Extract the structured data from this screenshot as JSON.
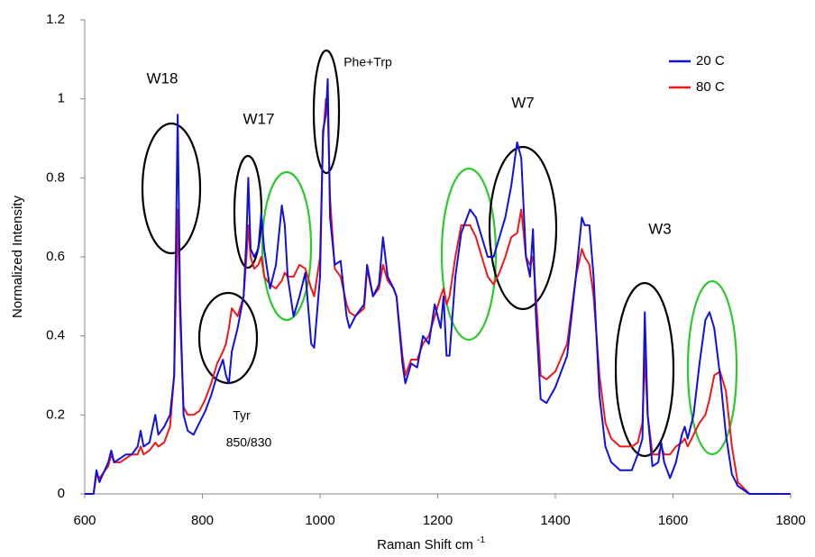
{
  "chart_data": {
    "type": "line",
    "x_label": "Raman Shift cm",
    "x_label_superscript": "-1",
    "y_label": "Normalized Intensity",
    "xlim": [
      600,
      1800
    ],
    "xticks": [
      600,
      800,
      1000,
      1200,
      1400,
      1600,
      1800
    ],
    "ylim": [
      0,
      1.2
    ],
    "yticks": [
      0,
      0.2,
      0.4,
      0.6,
      0.8,
      1,
      1.2
    ],
    "grid": false,
    "legend": "top-right",
    "annotations": [
      "W18",
      "W17",
      "Phe+Trp",
      "W7",
      "W3",
      "Tyr",
      "850/830"
    ],
    "x": [
      600,
      615,
      620,
      625,
      640,
      645,
      650,
      660,
      670,
      680,
      690,
      695,
      700,
      710,
      720,
      725,
      735,
      745,
      752,
      758,
      762,
      768,
      775,
      785,
      795,
      805,
      815,
      825,
      835,
      840,
      845,
      850,
      860,
      870,
      875,
      878,
      882,
      888,
      895,
      900,
      905,
      915,
      925,
      935,
      940,
      945,
      955,
      965,
      975,
      985,
      990,
      1000,
      1005,
      1010,
      1013,
      1017,
      1025,
      1035,
      1045,
      1050,
      1060,
      1075,
      1080,
      1090,
      1100,
      1107,
      1115,
      1125,
      1130,
      1140,
      1145,
      1155,
      1165,
      1175,
      1185,
      1195,
      1205,
      1210,
      1215,
      1220,
      1230,
      1240,
      1255,
      1265,
      1275,
      1285,
      1295,
      1305,
      1315,
      1325,
      1335,
      1342,
      1350,
      1357,
      1362,
      1367,
      1375,
      1385,
      1400,
      1420,
      1435,
      1445,
      1450,
      1458,
      1465,
      1475,
      1485,
      1495,
      1510,
      1530,
      1540,
      1548,
      1552,
      1557,
      1565,
      1575,
      1580,
      1585,
      1595,
      1605,
      1615,
      1620,
      1625,
      1635,
      1645,
      1655,
      1662,
      1670,
      1680,
      1690,
      1700,
      1710,
      1730,
      1800
    ],
    "series": [
      {
        "name": "20 C",
        "color": "#1010e0",
        "values": [
          0,
          0,
          0.06,
          0.03,
          0.08,
          0.11,
          0.08,
          0.09,
          0.1,
          0.1,
          0.12,
          0.16,
          0.12,
          0.13,
          0.2,
          0.15,
          0.17,
          0.2,
          0.3,
          0.96,
          0.5,
          0.2,
          0.16,
          0.15,
          0.18,
          0.21,
          0.25,
          0.3,
          0.34,
          0.3,
          0.28,
          0.36,
          0.42,
          0.5,
          0.65,
          0.8,
          0.62,
          0.6,
          0.62,
          0.71,
          0.62,
          0.52,
          0.58,
          0.73,
          0.68,
          0.55,
          0.45,
          0.5,
          0.56,
          0.38,
          0.37,
          0.55,
          0.92,
          0.96,
          1.05,
          0.7,
          0.58,
          0.59,
          0.45,
          0.42,
          0.45,
          0.48,
          0.58,
          0.5,
          0.53,
          0.65,
          0.55,
          0.52,
          0.5,
          0.33,
          0.28,
          0.33,
          0.32,
          0.4,
          0.38,
          0.48,
          0.42,
          0.5,
          0.35,
          0.35,
          0.55,
          0.66,
          0.72,
          0.7,
          0.65,
          0.6,
          0.6,
          0.65,
          0.7,
          0.78,
          0.89,
          0.85,
          0.6,
          0.55,
          0.67,
          0.45,
          0.24,
          0.23,
          0.27,
          0.35,
          0.55,
          0.7,
          0.68,
          0.68,
          0.55,
          0.25,
          0.12,
          0.08,
          0.06,
          0.06,
          0.1,
          0.14,
          0.46,
          0.2,
          0.07,
          0.08,
          0.13,
          0.08,
          0.04,
          0.08,
          0.15,
          0.17,
          0.14,
          0.2,
          0.33,
          0.44,
          0.46,
          0.42,
          0.3,
          0.15,
          0.05,
          0.02,
          0,
          0
        ]
      },
      {
        "name": "80 C",
        "color": "#f01818",
        "values": [
          0,
          0,
          0.05,
          0.04,
          0.07,
          0.1,
          0.08,
          0.08,
          0.09,
          0.1,
          0.1,
          0.12,
          0.1,
          0.11,
          0.13,
          0.12,
          0.13,
          0.17,
          0.3,
          0.72,
          0.45,
          0.22,
          0.2,
          0.2,
          0.21,
          0.24,
          0.28,
          0.33,
          0.36,
          0.38,
          0.42,
          0.47,
          0.45,
          0.5,
          0.6,
          0.68,
          0.6,
          0.57,
          0.58,
          0.6,
          0.55,
          0.53,
          0.52,
          0.54,
          0.56,
          0.55,
          0.55,
          0.58,
          0.57,
          0.52,
          0.5,
          0.6,
          0.9,
          1.0,
          0.98,
          0.75,
          0.57,
          0.55,
          0.48,
          0.46,
          0.45,
          0.47,
          0.57,
          0.5,
          0.52,
          0.58,
          0.54,
          0.52,
          0.5,
          0.35,
          0.3,
          0.34,
          0.34,
          0.38,
          0.4,
          0.45,
          0.5,
          0.52,
          0.48,
          0.5,
          0.6,
          0.68,
          0.68,
          0.65,
          0.6,
          0.55,
          0.53,
          0.56,
          0.6,
          0.65,
          0.66,
          0.72,
          0.6,
          0.58,
          0.6,
          0.5,
          0.3,
          0.29,
          0.31,
          0.38,
          0.55,
          0.62,
          0.6,
          0.58,
          0.5,
          0.3,
          0.18,
          0.14,
          0.12,
          0.12,
          0.13,
          0.18,
          0.35,
          0.2,
          0.1,
          0.1,
          0.12,
          0.1,
          0.1,
          0.12,
          0.13,
          0.14,
          0.12,
          0.15,
          0.18,
          0.2,
          0.24,
          0.3,
          0.31,
          0.26,
          0.12,
          0.03,
          0,
          0
        ]
      }
    ]
  }
}
